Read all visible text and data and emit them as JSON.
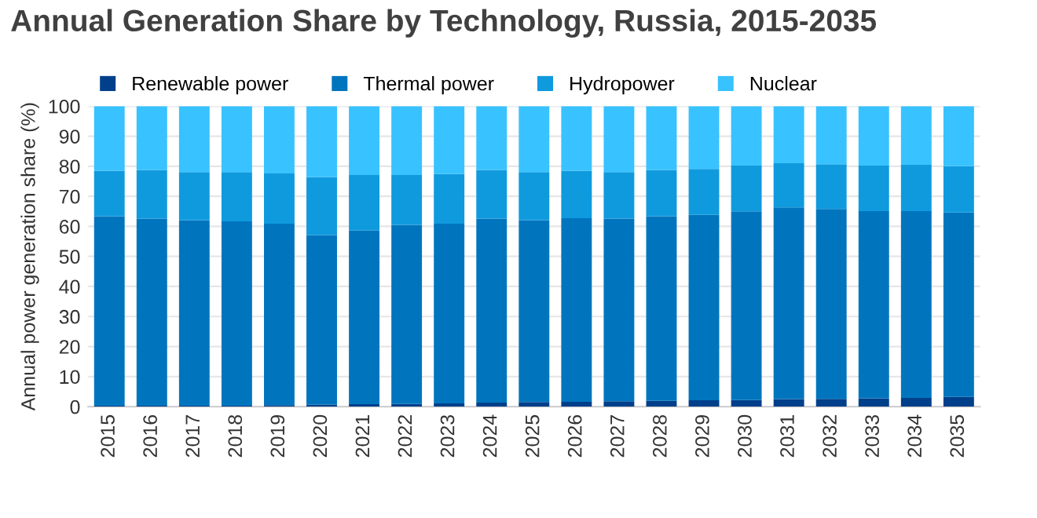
{
  "chart_data": {
    "type": "bar",
    "stacked": true,
    "title": "Annual Generation Share by Technology, Russia, 2015-2035",
    "ylabel": "Annual power generation share (%)",
    "categories": [
      "2015",
      "2016",
      "2017",
      "2018",
      "2019",
      "2020",
      "2021",
      "2022",
      "2023",
      "2024",
      "2025",
      "2026",
      "2027",
      "2028",
      "2029",
      "2030",
      "2031",
      "2032",
      "2033",
      "2034",
      "2035"
    ],
    "series": [
      {
        "name": "Renewable power",
        "color": "#003f8a",
        "values": [
          0.3,
          0.3,
          0.3,
          0.3,
          0.5,
          0.7,
          0.8,
          0.9,
          1.1,
          1.3,
          1.5,
          1.6,
          1.8,
          1.9,
          2.1,
          2.2,
          2.5,
          2.6,
          2.8,
          2.9,
          3.2
        ]
      },
      {
        "name": "Thermal power",
        "color": "#0075be",
        "values": [
          63.1,
          62.3,
          61.8,
          61.4,
          60.4,
          56.4,
          57.8,
          59.6,
          59.8,
          61.3,
          60.6,
          61.1,
          60.8,
          61.5,
          61.7,
          62.8,
          63.8,
          63.2,
          62.3,
          62.2,
          61.4
        ]
      },
      {
        "name": "Hydropower",
        "color": "#0f9ade",
        "values": [
          15.1,
          16.2,
          16.0,
          16.4,
          16.7,
          19.3,
          18.5,
          16.6,
          16.5,
          16.2,
          16.0,
          15.8,
          15.5,
          15.4,
          15.3,
          15.2,
          14.7,
          14.9,
          15.1,
          15.4,
          15.4
        ]
      },
      {
        "name": "Nuclear",
        "color": "#38c2ff",
        "values": [
          21.5,
          21.2,
          21.9,
          21.9,
          22.4,
          23.6,
          22.9,
          22.9,
          22.6,
          21.2,
          21.9,
          21.5,
          21.9,
          21.2,
          20.9,
          19.8,
          19.0,
          19.3,
          19.8,
          19.5,
          20.0
        ]
      }
    ],
    "ylim": [
      0,
      100
    ],
    "yticks": [
      0,
      10,
      20,
      30,
      40,
      50,
      60,
      70,
      80,
      90,
      100
    ],
    "grid": "y",
    "legend": "top left"
  }
}
